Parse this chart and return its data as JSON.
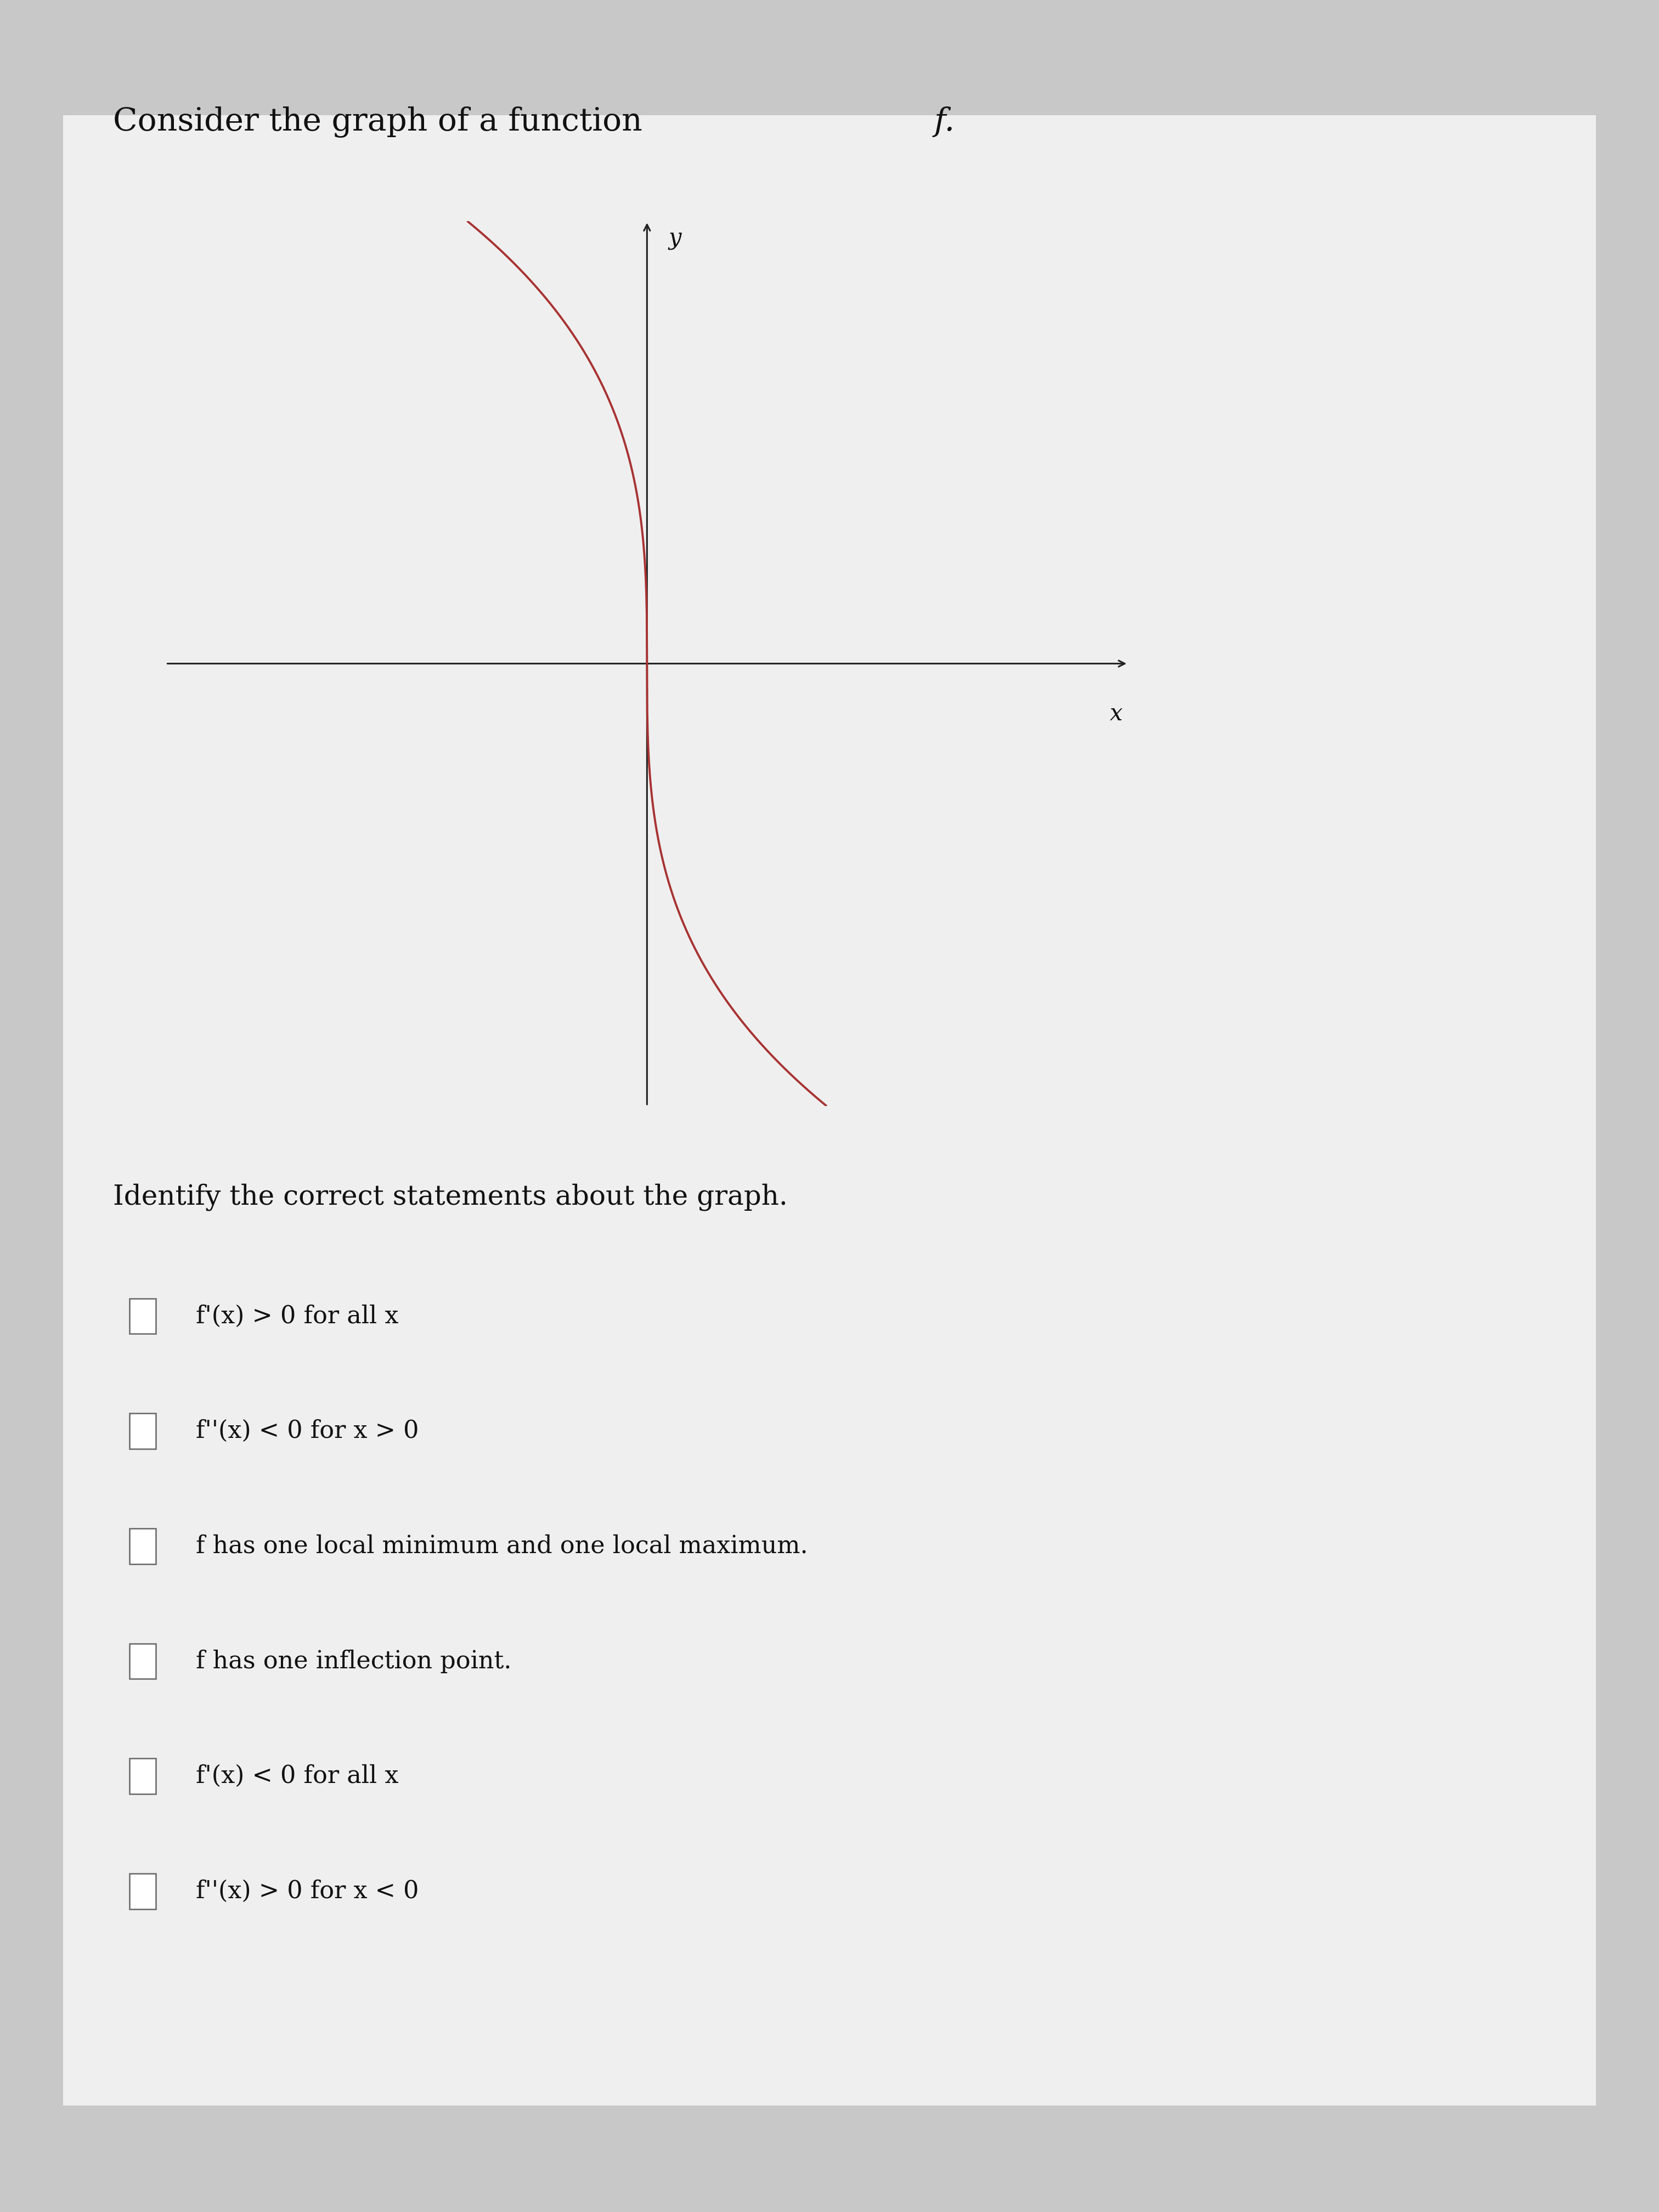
{
  "title_plain": "Consider the graph of a function ",
  "title_f": "f",
  "identify_text": "Identify the correct statements about the graph.",
  "statements": [
    "f'(x) > 0 for all x",
    "f''(x) < 0 for x > 0",
    "f has one local minimum and one local maximum.",
    "f has one inflection point.",
    "f'(x) < 0 for all x",
    "f''(x) > 0 for x < 0"
  ],
  "curve_color": "#a83232",
  "axis_color": "#222222",
  "background_color": "#c8c8c8",
  "paper_color": "#efefef",
  "text_color": "#111111",
  "x_label": "x",
  "y_label": "y",
  "graph_xlim": [
    -4,
    4
  ],
  "graph_ylim": [
    -4,
    4
  ],
  "curve_power": 0.333,
  "curve_scale": 3.5
}
